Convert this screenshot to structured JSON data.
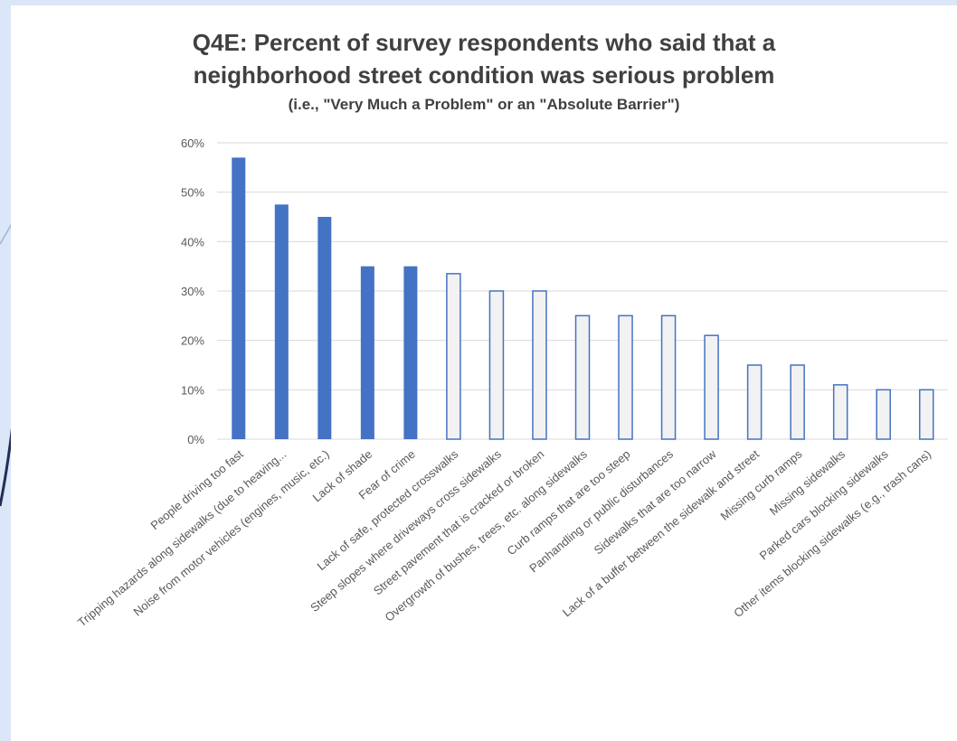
{
  "chart_data": {
    "type": "bar",
    "title_lines": [
      "Q4E: Percent of survey respondents who said that a",
      "neighborhood street condition was serious problem"
    ],
    "subtitle": "(i.e., \"Very Much a Problem\" or an \"Absolute Barrier\")",
    "categories": [
      "People driving too fast",
      "Tripping hazards along sidewalks  (due to heaving...",
      "Noise from motor vehicles (engines, music, etc.)",
      "Lack of shade",
      "Fear of crime",
      "Lack of safe, protected crosswalks",
      "Steep slopes where driveways cross sidewalks",
      "Street pavement that is cracked or broken",
      "Overgrowth of bushes, trees, etc. along sidewalks",
      "Curb ramps that are too steep",
      "Panhandling or public disturbances",
      "Sidewalks that are too narrow",
      "Lack of a buffer between the sidewalk and street",
      "Missing curb ramps",
      "Missing sidewalks",
      "Parked cars blocking sidewalks",
      "Other items blocking sidewalks (e.g., trash cans)"
    ],
    "values": [
      57,
      47.5,
      45,
      35,
      35,
      33.5,
      30,
      30,
      25,
      25,
      25,
      21,
      15,
      15,
      11,
      10,
      10
    ],
    "highlighted": [
      true,
      true,
      true,
      true,
      true,
      false,
      false,
      false,
      false,
      false,
      false,
      false,
      false,
      false,
      false,
      false,
      false
    ],
    "ylim": [
      0,
      60
    ],
    "yticks": [
      "0%",
      "10%",
      "20%",
      "30%",
      "40%",
      "50%",
      "60%"
    ],
    "ytick_values": [
      0,
      10,
      20,
      30,
      40,
      50,
      60
    ],
    "grid": true,
    "xlabel": "",
    "ylabel": "",
    "colors": {
      "highlight_fill": "#4472c4",
      "normal_fill": "#f2f2f2",
      "normal_stroke": "#4472c4",
      "grid": "#d9d9d9",
      "text": "#595959",
      "title": "#404040",
      "slide_bg": "#dbe6f8",
      "slide_accent": "#2f4a80"
    }
  }
}
